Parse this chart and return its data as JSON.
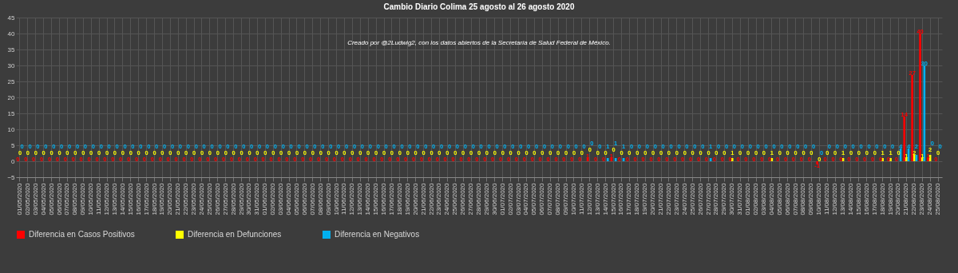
{
  "chart_data": {
    "type": "bar",
    "title": "Cambio Diario Colima 25 agosto al 26 agosto 2020",
    "annotations": [
      "Creado por @2Ludwig2, con los datos abiertos de la Secretaría de Salud Federal de México."
    ],
    "categories": [
      "01/05/2020",
      "02/05/2020",
      "03/05/2020",
      "04/05/2020",
      "05/05/2020",
      "06/05/2020",
      "07/05/2020",
      "08/05/2020",
      "09/05/2020",
      "10/05/2020",
      "11/05/2020",
      "12/05/2020",
      "13/05/2020",
      "14/05/2020",
      "15/05/2020",
      "16/05/2020",
      "17/05/2020",
      "18/05/2020",
      "19/05/2020",
      "20/05/2020",
      "21/05/2020",
      "22/05/2020",
      "23/05/2020",
      "24/05/2020",
      "25/05/2020",
      "26/05/2020",
      "27/05/2020",
      "28/05/2020",
      "29/05/2020",
      "30/05/2020",
      "31/05/2020",
      "01/06/2020",
      "02/06/2020",
      "03/06/2020",
      "04/06/2020",
      "05/06/2020",
      "06/06/2020",
      "07/06/2020",
      "08/06/2020",
      "09/06/2020",
      "10/06/2020",
      "11/06/2020",
      "12/06/2020",
      "13/06/2020",
      "14/06/2020",
      "15/06/2020",
      "16/06/2020",
      "17/06/2020",
      "18/06/2020",
      "19/06/2020",
      "20/06/2020",
      "21/06/2020",
      "22/06/2020",
      "23/06/2020",
      "24/06/2020",
      "25/06/2020",
      "26/06/2020",
      "27/06/2020",
      "28/06/2020",
      "29/06/2020",
      "30/06/2020",
      "01/07/2020",
      "02/07/2020",
      "03/07/2020",
      "04/07/2020",
      "05/07/2020",
      "06/07/2020",
      "07/07/2020",
      "08/07/2020",
      "09/07/2020",
      "10/07/2020",
      "11/07/2020",
      "12/07/2020",
      "13/07/2020",
      "14/07/2020",
      "15/07/2020",
      "16/07/2020",
      "17/07/2020",
      "18/07/2020",
      "19/07/2020",
      "20/07/2020",
      "21/07/2020",
      "22/07/2020",
      "23/07/2020",
      "24/07/2020",
      "25/07/2020",
      "26/07/2020",
      "27/07/2020",
      "28/07/2020",
      "29/07/2020",
      "30/07/2020",
      "31/07/2020",
      "01/08/2020",
      "02/08/2020",
      "03/08/2020",
      "04/08/2020",
      "05/08/2020",
      "06/08/2020",
      "07/08/2020",
      "08/08/2020",
      "09/08/2020",
      "10/08/2020",
      "11/08/2020",
      "12/08/2020",
      "13/08/2020",
      "14/08/2020",
      "15/08/2020",
      "16/08/2020",
      "17/08/2020",
      "18/08/2020",
      "19/08/2020",
      "20/08/2020",
      "21/08/2020",
      "22/08/2020",
      "23/08/2020",
      "24/08/2020",
      "25/08/2020"
    ],
    "series": [
      {
        "name": "Diferencia en Casos Positivos",
        "color": "#ff0000",
        "values": [
          0,
          0,
          0,
          0,
          0,
          0,
          0,
          0,
          0,
          0,
          0,
          0,
          0,
          0,
          0,
          0,
          0,
          0,
          0,
          0,
          0,
          0,
          0,
          0,
          0,
          0,
          0,
          0,
          0,
          0,
          0,
          0,
          0,
          0,
          0,
          0,
          0,
          0,
          0,
          0,
          0,
          0,
          0,
          0,
          0,
          0,
          0,
          0,
          0,
          0,
          0,
          0,
          0,
          0,
          0,
          0,
          0,
          0,
          0,
          0,
          0,
          0,
          0,
          0,
          0,
          0,
          0,
          0,
          0,
          0,
          0,
          0,
          1,
          0,
          0,
          1,
          0,
          0,
          0,
          0,
          0,
          0,
          0,
          0,
          0,
          0,
          0,
          0,
          0,
          0,
          0,
          0,
          0,
          0,
          0,
          0,
          0,
          0,
          0,
          0,
          0,
          -1,
          0,
          0,
          0,
          0,
          0,
          0,
          0,
          0,
          0,
          0,
          14,
          27,
          40,
          1,
          0
        ]
      },
      {
        "name": "Diferencia en Defunciones",
        "color": "#ffff00",
        "values": [
          0,
          0,
          0,
          0,
          0,
          0,
          0,
          0,
          0,
          0,
          0,
          0,
          0,
          0,
          0,
          0,
          0,
          0,
          0,
          0,
          0,
          0,
          0,
          0,
          0,
          0,
          0,
          0,
          0,
          0,
          0,
          0,
          0,
          0,
          0,
          0,
          0,
          0,
          0,
          0,
          0,
          0,
          0,
          0,
          0,
          0,
          0,
          0,
          0,
          0,
          0,
          0,
          0,
          0,
          0,
          0,
          0,
          0,
          0,
          0,
          0,
          0,
          0,
          0,
          0,
          0,
          0,
          0,
          0,
          0,
          0,
          0,
          0,
          0,
          0,
          0,
          0,
          0,
          0,
          0,
          0,
          0,
          0,
          0,
          0,
          0,
          0,
          0,
          0,
          0,
          1,
          0,
          0,
          0,
          0,
          1,
          0,
          0,
          0,
          0,
          0,
          0,
          0,
          0,
          1,
          0,
          0,
          0,
          0,
          1,
          1,
          0,
          1,
          2,
          1,
          2,
          0
        ]
      },
      {
        "name": "Diferencia en Negativos",
        "color": "#00b0f0",
        "values": [
          0,
          0,
          0,
          0,
          0,
          0,
          0,
          0,
          0,
          0,
          0,
          0,
          0,
          0,
          0,
          0,
          0,
          0,
          0,
          0,
          0,
          0,
          0,
          0,
          0,
          0,
          0,
          0,
          0,
          0,
          0,
          0,
          0,
          0,
          0,
          0,
          0,
          0,
          0,
          0,
          0,
          0,
          0,
          0,
          0,
          0,
          0,
          0,
          0,
          0,
          0,
          0,
          0,
          0,
          0,
          0,
          0,
          0,
          0,
          0,
          0,
          0,
          0,
          0,
          0,
          0,
          0,
          0,
          0,
          0,
          0,
          0,
          0,
          0,
          1,
          1,
          1,
          0,
          0,
          0,
          0,
          0,
          0,
          0,
          0,
          0,
          0,
          1,
          0,
          0,
          0,
          0,
          0,
          0,
          0,
          0,
          0,
          0,
          0,
          0,
          0,
          0,
          0,
          0,
          0,
          0,
          0,
          0,
          0,
          0,
          0,
          4,
          4,
          2,
          30,
          0,
          0
        ]
      }
    ],
    "ylim": [
      -5,
      45
    ],
    "yticks": [
      -5,
      0,
      5,
      10,
      15,
      20,
      25,
      30,
      35,
      40,
      45
    ],
    "grid": true,
    "legend": "bottom",
    "data_labels": true
  }
}
